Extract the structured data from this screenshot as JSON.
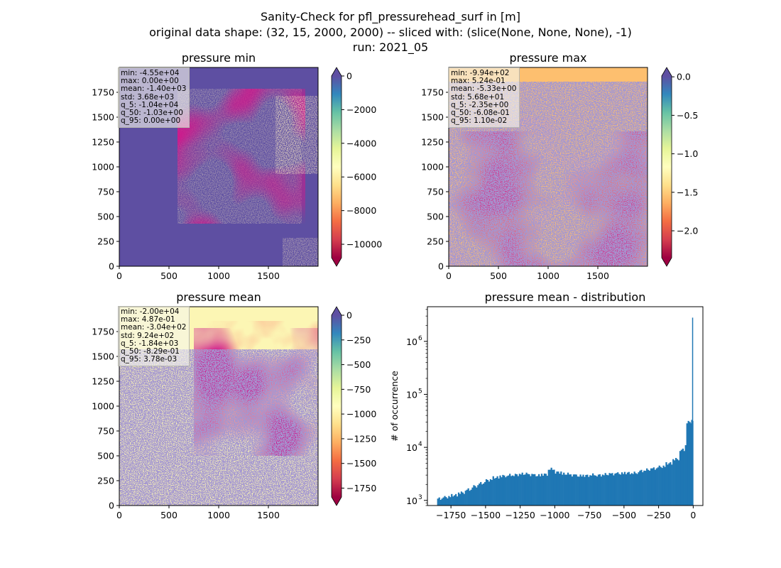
{
  "figure": {
    "title_lines": [
      "Sanity-Check for pfl_pressurehead_surf in [m]",
      "original data shape: (32, 15, 2000, 2000) -- sliced with: (slice(None, None, None), -1)",
      "run: 2021_05"
    ]
  },
  "panels": [
    {
      "id": "min",
      "title": "pressure min",
      "colormap": "Spectral",
      "base_color": "#5e4fa2",
      "color_limits": [
        -10800,
        0
      ],
      "colorbar_ticks": [
        0,
        -2000,
        -4000,
        -6000,
        -8000,
        -10000
      ],
      "colorbar_extend": "both",
      "stats": [
        "min: -4.55e+04",
        "max: 0.00e+00",
        "mean: -1.40e+03",
        "std: 3.68e+03",
        "q_5: -1.04e+04",
        "q_50: -1.03e+00",
        "q_95: 0.00e+00"
      ]
    },
    {
      "id": "max",
      "title": "pressure max",
      "colormap": "Spectral",
      "base_color": "#fdbf6f",
      "color_limits": [
        -2.35,
        0.011
      ],
      "colorbar_ticks": [
        0.0,
        -0.5,
        -1.0,
        -1.5,
        -2.0
      ],
      "colorbar_extend": "both",
      "stats": [
        "min: -9.94e+02",
        "max: 5.24e-01",
        "mean: -5.33e+00",
        "std: 5.68e+01",
        "q_5: -2.35e+00",
        "q_50: -6.08e-01",
        "q_95: 1.10e-02"
      ]
    },
    {
      "id": "mean",
      "title": "pressure mean",
      "colormap": "Spectral",
      "base_color": "#fcf6b4",
      "color_limits": [
        -1840,
        0
      ],
      "colorbar_ticks": [
        0,
        -250,
        -500,
        -750,
        -1000,
        -1250,
        -1500,
        -1750
      ],
      "colorbar_extend": "both",
      "stats": [
        "min: -2.00e+04",
        "max: 4.87e-01",
        "mean: -3.04e+02",
        "std: 9.24e+02",
        "q_5: -1.84e+03",
        "q_50: -8.29e-01",
        "q_95: 3.78e-03"
      ]
    }
  ],
  "image_axes": {
    "x_ticks": [
      0,
      500,
      1000,
      1500
    ],
    "y_ticks": [
      0,
      250,
      500,
      750,
      1000,
      1250,
      1500,
      1750
    ],
    "x_range": [
      0,
      2000
    ],
    "y_range": [
      0,
      2000
    ]
  },
  "chart_data": {
    "type": "bar",
    "title": "pressure mean - distribution",
    "xlabel": "",
    "ylabel": "# of occurrence",
    "y_scale": "log",
    "xlim": [
      -1920,
      70
    ],
    "ylim": [
      800,
      4500000
    ],
    "x_ticks": [
      -1750,
      -1500,
      -1250,
      -1000,
      -750,
      -500,
      -250,
      0
    ],
    "x_tick_labels": [
      "−1750",
      "−1500",
      "−1250",
      "−1000",
      "−750",
      "−500",
      "−250",
      "0"
    ],
    "y_ticks": [
      1000,
      10000,
      100000,
      1000000
    ],
    "y_tick_labels": [
      "10",
      "10",
      "10",
      "10"
    ],
    "y_tick_exponents": [
      "3",
      "4",
      "5",
      "6"
    ],
    "grid": false,
    "bar_color": "#1f77b4",
    "series": [
      {
        "x": [
          -1825,
          -1775,
          -1725,
          -1675,
          -1625,
          -1575,
          -1525,
          -1475,
          -1425,
          -1375,
          -1325,
          -1275,
          -1225,
          -1175,
          -1125,
          -1075,
          -1025,
          -975,
          -925,
          -875,
          -825,
          -775,
          -725,
          -675,
          -625,
          -575,
          -525,
          -475,
          -425,
          -375,
          -325,
          -275,
          -225,
          -175,
          -125,
          -75,
          -25,
          -5
        ],
        "values": [
          1080,
          1150,
          1250,
          1400,
          1600,
          1850,
          2100,
          2400,
          2700,
          2900,
          3000,
          3050,
          3150,
          3050,
          2950,
          3100,
          3900,
          3400,
          3150,
          3000,
          2900,
          2950,
          3050,
          3000,
          3100,
          3150,
          3200,
          3300,
          3300,
          3600,
          3800,
          4000,
          4300,
          5000,
          6000,
          9000,
          30000,
          2800000
        ]
      }
    ]
  }
}
